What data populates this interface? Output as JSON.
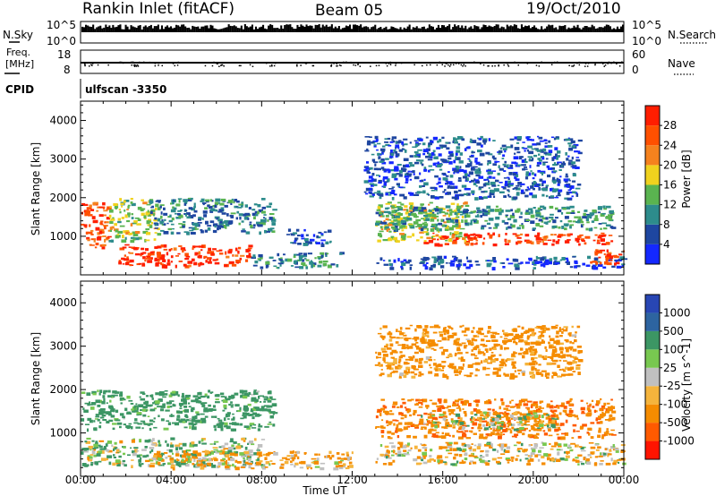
{
  "header": {
    "station_title": "Rankin Inlet (fitACF)",
    "beam": "Beam 05",
    "date": "19/Oct/2010"
  },
  "meta_panels": {
    "nsky": {
      "label": "N.Sky",
      "tick_top": "10^5",
      "tick_bottom": "10^0"
    },
    "nsearch": {
      "label": "N.Search",
      "tick_top": "10^5",
      "tick_bottom": "10^0"
    },
    "freq": {
      "label_line1": "Freq.",
      "label_line2": "[MHz]",
      "tick_top": "18",
      "tick_bottom": "8"
    },
    "nave": {
      "label": "Nave",
      "tick_top": "60",
      "tick_bottom": "0"
    },
    "cpid": {
      "label": "CPID",
      "value": "ulfscan -3350"
    }
  },
  "colors": {
    "power": [
      "#1428ff",
      "#1e46a0",
      "#2d8c8c",
      "#5ab450",
      "#f0d21e",
      "#f5821e",
      "#ff5000",
      "#ff1e00"
    ],
    "velocity": [
      "#ff1400",
      "#ff5a00",
      "#f58c00",
      "#f5b43c",
      "#c0c0c0",
      "#78c850",
      "#3c9664",
      "#2d64a0",
      "#2846b4"
    ]
  },
  "chart_data": [
    {
      "type": "heatmap",
      "name": "power",
      "ylabel": "Slant Range [km]",
      "xlim": [
        "00:00",
        "24:00"
      ],
      "ylim": [
        0,
        4500
      ],
      "y_ticks": [
        "1000",
        "2000",
        "3000",
        "4000"
      ],
      "colorbar": {
        "label": "Power [dB]",
        "ticks": [
          "4",
          "8",
          "12",
          "16",
          "20",
          "24",
          "28"
        ],
        "range": [
          0,
          32
        ]
      },
      "echo_regions": [
        {
          "t_start": 0.0,
          "t_end": 1.2,
          "range_start": 700,
          "range_end": 1900,
          "level": 27
        },
        {
          "t_start": 1.2,
          "t_end": 3.4,
          "range_start": 900,
          "range_end": 2000,
          "level": 16
        },
        {
          "t_start": 1.6,
          "t_end": 7.5,
          "range_start": 250,
          "range_end": 800,
          "level": 28
        },
        {
          "t_start": 7.5,
          "t_end": 11.5,
          "range_start": 200,
          "range_end": 600,
          "level": 10
        },
        {
          "t_start": 3.0,
          "t_end": 8.5,
          "range_start": 1100,
          "range_end": 2000,
          "level": 9
        },
        {
          "t_start": 9.0,
          "t_end": 11.0,
          "range_start": 800,
          "range_end": 1200,
          "level": 6
        },
        {
          "t_start": 13.0,
          "t_end": 17.0,
          "range_start": 900,
          "range_end": 1900,
          "level": 17
        },
        {
          "t_start": 15.0,
          "t_end": 23.5,
          "range_start": 800,
          "range_end": 1100,
          "level": 28
        },
        {
          "t_start": 13.0,
          "t_end": 23.5,
          "range_start": 1200,
          "range_end": 1800,
          "level": 11
        },
        {
          "t_start": 13.0,
          "t_end": 24.0,
          "range_start": 200,
          "range_end": 500,
          "level": 5
        },
        {
          "t_start": 22.5,
          "t_end": 24.0,
          "range_start": 300,
          "range_end": 700,
          "level": 28
        },
        {
          "t_start": 12.5,
          "t_end": 22.0,
          "range_start": 2000,
          "range_end": 3600,
          "level": 6
        }
      ]
    },
    {
      "type": "heatmap",
      "name": "velocity",
      "xlabel": "Time UT",
      "ylabel": "Slant Range [km]",
      "xlim": [
        "00:00",
        "24:00"
      ],
      "ylim": [
        0,
        4500
      ],
      "x_ticks": [
        "00:00",
        "04:00",
        "08:00",
        "12:00",
        "16:00",
        "20:00",
        "00:00"
      ],
      "y_ticks": [
        "1000",
        "2000",
        "3000",
        "4000"
      ],
      "colorbar": {
        "label": "Velocity [m s^-1]",
        "ticks": [
          "1000",
          "500",
          "100",
          "25",
          "-25",
          "-100",
          "-500",
          "-1000"
        ]
      },
      "echo_regions": [
        {
          "t_start": 0.0,
          "t_end": 8.5,
          "range_start": 1100,
          "range_end": 2000,
          "velocity": 150
        },
        {
          "t_start": 0.0,
          "t_end": 8.0,
          "range_start": 250,
          "range_end": 900,
          "velocity": 50
        },
        {
          "t_start": 3.0,
          "t_end": 12.0,
          "range_start": 200,
          "range_end": 600,
          "velocity": -80
        },
        {
          "t_start": 13.0,
          "t_end": 23.5,
          "range_start": 900,
          "range_end": 1800,
          "velocity": -250
        },
        {
          "t_start": 15.0,
          "t_end": 21.0,
          "range_start": 1100,
          "range_end": 1500,
          "velocity": 0
        },
        {
          "t_start": 13.0,
          "t_end": 24.0,
          "range_start": 300,
          "range_end": 800,
          "velocity": -40
        },
        {
          "t_start": 13.0,
          "t_end": 22.0,
          "range_start": 2300,
          "range_end": 3500,
          "velocity": -150
        }
      ]
    }
  ]
}
